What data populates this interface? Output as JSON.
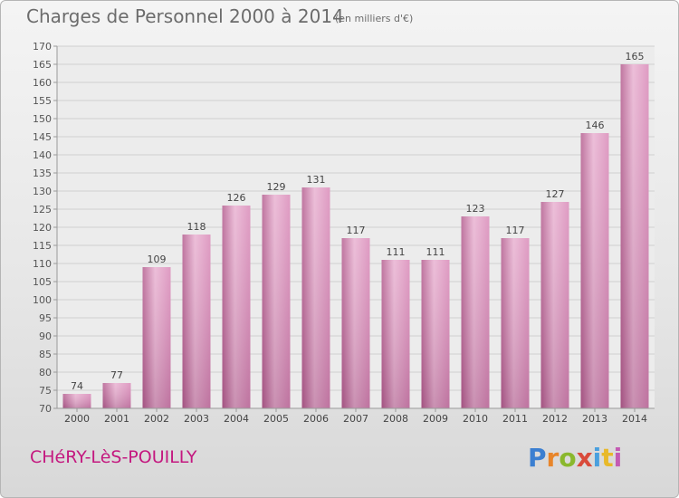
{
  "header": {
    "title": "Charges de Personnel 2000 à 2014",
    "subtitle": "(en milliers d'€)"
  },
  "footer": {
    "commune": "CHéRY-LèS-POUILLY",
    "logo_text": "Proxiti",
    "logo_colors": [
      "#3b7fd1",
      "#e8852a",
      "#8ab82d",
      "#d94a3a",
      "#4aa0de",
      "#e8b92a",
      "#c45ab3"
    ]
  },
  "chart_data": {
    "type": "bar",
    "categories": [
      "2000",
      "2001",
      "2002",
      "2003",
      "2004",
      "2005",
      "2006",
      "2007",
      "2008",
      "2009",
      "2010",
      "2011",
      "2012",
      "2013",
      "2014"
    ],
    "values": [
      74,
      77,
      109,
      118,
      126,
      129,
      131,
      117,
      111,
      111,
      123,
      117,
      127,
      146,
      165
    ],
    "data_labels": [
      "74",
      "77",
      "109",
      "118",
      "126",
      "129",
      "131",
      "117",
      "111",
      "111",
      "123",
      "117",
      "127",
      "146",
      "165"
    ],
    "yticks": [
      "70",
      "75",
      "80",
      "85",
      "90",
      "95",
      "100",
      "105",
      "110",
      "115",
      "120",
      "125",
      "130",
      "135",
      "140",
      "145",
      "150",
      "155",
      "160",
      "165",
      "170"
    ],
    "ylim": [
      70,
      170
    ],
    "grid": true,
    "bar_color": "#d98ab8",
    "bar_color_light": "#e9b3d2",
    "bar_color_dark": "#b55f90",
    "title": "Charges de Personnel 2000 à 2014",
    "xlabel": "",
    "ylabel": ""
  }
}
